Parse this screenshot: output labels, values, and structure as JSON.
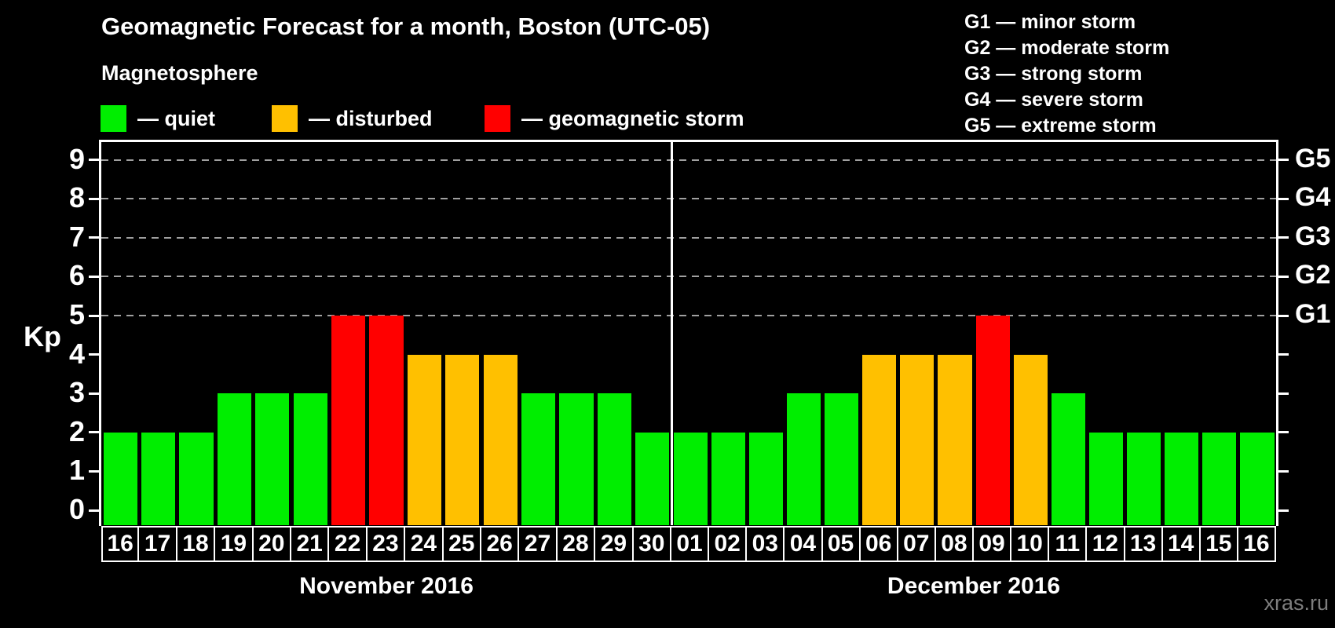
{
  "title": "Geomagnetic Forecast for a month, Boston (UTC-05)",
  "legend": {
    "heading": "Magnetosphere",
    "items": [
      {
        "name": "quiet",
        "label": "— quiet",
        "color": "#00EE00"
      },
      {
        "name": "disturbed",
        "label": "— disturbed",
        "color": "#FFC000"
      },
      {
        "name": "storm",
        "label": "— geomagnetic storm",
        "color": "#FF0000"
      }
    ]
  },
  "g_scale": [
    "G1 — minor storm",
    "G2 — moderate storm",
    "G3 — strong storm",
    "G4 — severe storm",
    "G5 — extreme storm"
  ],
  "axes": {
    "y_left": {
      "title": "Kp",
      "ticks": [
        0,
        1,
        2,
        3,
        4,
        5,
        6,
        7,
        8,
        9
      ]
    },
    "y_right": {
      "labels": [
        {
          "kp": 5,
          "label": "G1"
        },
        {
          "kp": 6,
          "label": "G2"
        },
        {
          "kp": 7,
          "label": "G3"
        },
        {
          "kp": 8,
          "label": "G4"
        },
        {
          "kp": 9,
          "label": "G5"
        }
      ]
    }
  },
  "watermark": "xras.ru",
  "chart_data": {
    "type": "bar",
    "title": "Geomagnetic Forecast for a month, Boston (UTC-05)",
    "xlabel": "",
    "ylabel": "Kp",
    "ylim": [
      0,
      9.6
    ],
    "yticks": [
      0,
      1,
      2,
      3,
      4,
      5,
      6,
      7,
      8,
      9
    ],
    "gridlines_at_kp": [
      5,
      6,
      7,
      8,
      9
    ],
    "grid": "dashed-horizontal-at-G-levels",
    "legend_position": "top-left",
    "right_axis_labels": [
      "G1",
      "G2",
      "G3",
      "G4",
      "G5"
    ],
    "status_colors": {
      "quiet": "#00EE00",
      "disturbed": "#FFC000",
      "storm": "#FF0000"
    },
    "groups": [
      {
        "month_label": "November 2016",
        "days": [
          "16",
          "17",
          "18",
          "19",
          "20",
          "21",
          "22",
          "23",
          "24",
          "25",
          "26",
          "27",
          "28",
          "29",
          "30"
        ],
        "kp": [
          2,
          2,
          2,
          3,
          3,
          3,
          5,
          5,
          4,
          4,
          4,
          3,
          3,
          3,
          2
        ],
        "status": [
          "quiet",
          "quiet",
          "quiet",
          "quiet",
          "quiet",
          "quiet",
          "storm",
          "storm",
          "disturbed",
          "disturbed",
          "disturbed",
          "quiet",
          "quiet",
          "quiet",
          "quiet"
        ]
      },
      {
        "month_label": "December 2016",
        "days": [
          "01",
          "02",
          "03",
          "04",
          "05",
          "06",
          "07",
          "08",
          "09",
          "10",
          "11",
          "12",
          "13",
          "14",
          "15",
          "16"
        ],
        "kp": [
          2,
          2,
          2,
          3,
          3,
          4,
          4,
          4,
          5,
          4,
          3,
          2,
          2,
          2,
          2,
          2
        ],
        "status": [
          "quiet",
          "quiet",
          "quiet",
          "quiet",
          "quiet",
          "disturbed",
          "disturbed",
          "disturbed",
          "storm",
          "disturbed",
          "quiet",
          "quiet",
          "quiet",
          "quiet",
          "quiet",
          "quiet"
        ]
      }
    ]
  }
}
